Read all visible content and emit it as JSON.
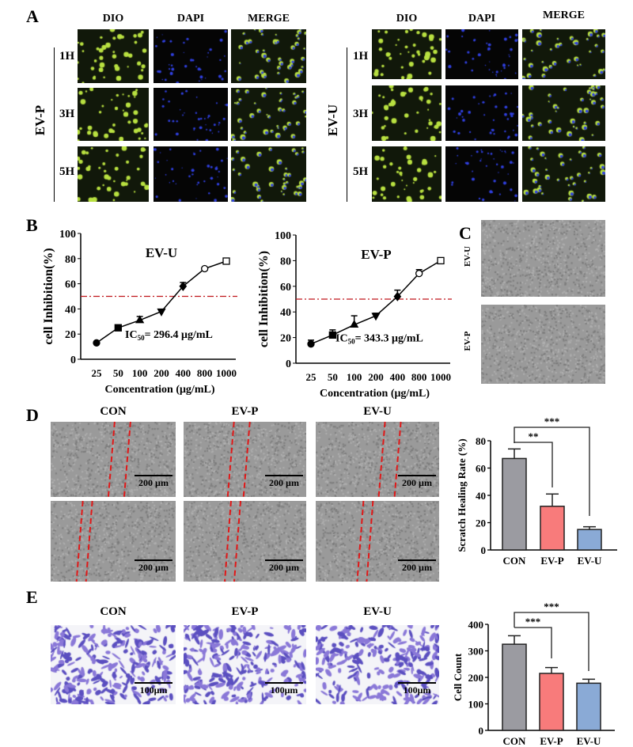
{
  "panels": {
    "a": "A",
    "b": "B",
    "c": "C",
    "d": "D",
    "e": "E"
  },
  "panel_a": {
    "columns": [
      "DIO",
      "DAPI",
      "MERGE"
    ],
    "rows": [
      "1H",
      "3H",
      "5H"
    ],
    "groups": [
      "EV-P",
      "EV-U"
    ]
  },
  "panel_c": {
    "rows": [
      "EV-U",
      "EV-P"
    ]
  },
  "panel_d": {
    "columns": [
      "CON",
      "EV-P",
      "EV-U"
    ],
    "scale": "200 µm"
  },
  "panel_e": {
    "columns": [
      "CON",
      "EV-P",
      "EV-U"
    ],
    "scale": "100μm"
  },
  "colors": {
    "con": "#9b9ba1",
    "evp": "#f87b7b",
    "evu": "#8aaad6",
    "ic50_line": "#c0161c"
  },
  "chart_data": [
    {
      "type": "line",
      "title": "EV-U",
      "categories": [
        "25",
        "50",
        "100",
        "200",
        "400",
        "800",
        "1000"
      ],
      "values": [
        13,
        25,
        31,
        38,
        58,
        72,
        78
      ],
      "errors": [
        1,
        1,
        3,
        1,
        3,
        1,
        1
      ],
      "markers": [
        "circle",
        "square",
        "triangle",
        "triangle-down",
        "diamond",
        "circle-open",
        "square-open"
      ],
      "xlabel": "Concentration (μg/mL)",
      "ylabel": "cell Inhibition(%)",
      "ylim": [
        0,
        100
      ],
      "yticks": [
        "0",
        "20",
        "40",
        "60",
        "80",
        "100"
      ],
      "reference_line": 50,
      "annotation": {
        "prefix": "IC",
        "sub": "50",
        "text": "= 296.4 μg/mL"
      }
    },
    {
      "type": "line",
      "title": "EV-P",
      "categories": [
        "25",
        "50",
        "100",
        "200",
        "400",
        "800",
        "1000"
      ],
      "values": [
        15,
        22,
        30,
        37,
        52,
        70,
        80
      ],
      "errors": [
        3,
        4,
        7,
        2,
        5,
        3,
        1
      ],
      "markers": [
        "circle",
        "square",
        "triangle",
        "triangle-down",
        "diamond",
        "circle-open",
        "square-open"
      ],
      "xlabel": "Concentration (μg/mL)",
      "ylabel": "cell Inhibition(%)",
      "ylim": [
        0,
        100
      ],
      "yticks": [
        "0",
        "20",
        "40",
        "60",
        "80",
        "100"
      ],
      "reference_line": 50,
      "annotation": {
        "prefix": "IC",
        "sub": "50",
        "text": "= 343.3 μg/mL"
      }
    },
    {
      "type": "bar",
      "categories": [
        "CON",
        "EV-P",
        "EV-U"
      ],
      "values": [
        67,
        32,
        15
      ],
      "errors": [
        7,
        9,
        2
      ],
      "ylabel": "Scratch Healing Rate (%)",
      "ylim": [
        0,
        80
      ],
      "yticks": [
        "0",
        "20",
        "40",
        "60",
        "80"
      ],
      "significance": [
        {
          "from": "CON",
          "to": "EV-P",
          "label": "**"
        },
        {
          "from": "CON",
          "to": "EV-U",
          "label": "***"
        }
      ]
    },
    {
      "type": "bar",
      "categories": [
        "CON",
        "EV-P",
        "EV-U"
      ],
      "values": [
        325,
        215,
        178
      ],
      "errors": [
        32,
        22,
        15
      ],
      "ylabel": "Cell Count",
      "ylim": [
        0,
        400
      ],
      "yticks": [
        "0",
        "100",
        "200",
        "300",
        "400"
      ],
      "significance": [
        {
          "from": "CON",
          "to": "EV-P",
          "label": "***"
        },
        {
          "from": "CON",
          "to": "EV-U",
          "label": "***"
        }
      ]
    }
  ]
}
